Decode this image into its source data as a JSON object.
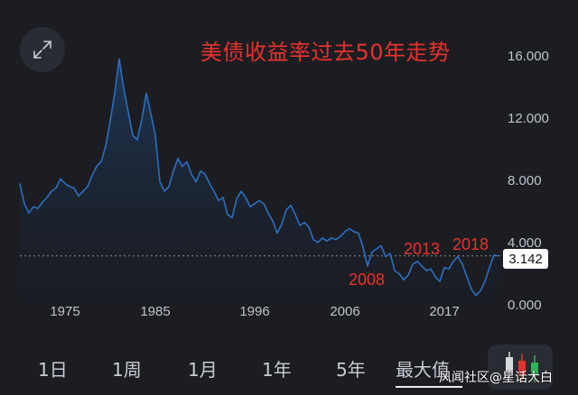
{
  "chart_data": {
    "type": "area",
    "title": "美债收益率过去50年走势",
    "x_tick_labels": [
      "1975",
      "1985",
      "1996",
      "2006",
      "2017"
    ],
    "y_tick_labels": [
      "16.000",
      "12.000",
      "8.000",
      "4.000",
      "0.000"
    ],
    "ylim": [
      0,
      16
    ],
    "grid": false,
    "current_value_label": "3.142",
    "current_value": 3.142,
    "annotations": [
      {
        "text": "2008",
        "year": 2008
      },
      {
        "text": "2013",
        "year": 2013
      },
      {
        "text": "2018",
        "year": 2018
      }
    ],
    "series": [
      {
        "x": [
          1970.0,
          1970.5,
          1971.0,
          1971.5,
          1972.0,
          1972.5,
          1973.0,
          1973.5,
          1974.0,
          1974.5,
          1975.0,
          1975.5,
          1976.0,
          1976.5,
          1977.0,
          1977.5,
          1978.0,
          1978.5,
          1979.0,
          1979.5,
          1980.0,
          1980.5,
          1981.0,
          1981.5,
          1982.0,
          1982.5,
          1983.0,
          1983.5,
          1984.0,
          1984.5,
          1985.0,
          1985.5,
          1986.0,
          1986.5,
          1987.0,
          1987.5,
          1988.0,
          1988.5,
          1989.0,
          1989.5,
          1990.0,
          1990.5,
          1991.0,
          1991.5,
          1992.0,
          1992.5,
          1993.0,
          1993.5,
          1994.0,
          1994.5,
          1995.0,
          1995.5,
          1996.0,
          1996.5,
          1997.0,
          1997.5,
          1998.0,
          1998.5,
          1999.0,
          1999.5,
          2000.0,
          2000.5,
          2001.0,
          2001.5,
          2002.0,
          2002.5,
          2003.0,
          2003.5,
          2004.0,
          2004.5,
          2005.0,
          2005.5,
          2006.0,
          2006.5,
          2007.0,
          2007.5,
          2008.0,
          2008.5,
          2009.0,
          2009.5,
          2010.0,
          2010.5,
          2011.0,
          2011.5,
          2012.0,
          2012.5,
          2013.0,
          2013.5,
          2014.0,
          2014.5,
          2015.0,
          2015.5,
          2016.0,
          2016.5,
          2017.0,
          2017.5,
          2018.0,
          2018.5,
          2019.0,
          2019.5,
          2020.0,
          2020.5,
          2021.0,
          2021.5,
          2022.0,
          2022.5,
          2023.0
        ],
        "values": [
          7.8,
          6.5,
          5.9,
          6.3,
          6.2,
          6.6,
          6.9,
          7.3,
          7.5,
          8.1,
          7.8,
          7.6,
          7.5,
          7.0,
          7.3,
          7.6,
          8.3,
          8.9,
          9.2,
          10.2,
          11.8,
          13.6,
          15.8,
          13.9,
          12.4,
          10.9,
          10.6,
          11.9,
          13.6,
          12.3,
          10.9,
          7.9,
          7.3,
          7.6,
          8.6,
          9.4,
          8.9,
          9.2,
          8.4,
          7.9,
          8.6,
          8.4,
          7.8,
          7.3,
          6.7,
          6.9,
          5.8,
          5.6,
          6.8,
          7.3,
          6.9,
          6.3,
          6.5,
          6.7,
          6.5,
          5.9,
          5.4,
          4.6,
          5.2,
          6.1,
          6.4,
          5.8,
          5.1,
          5.3,
          5.0,
          4.2,
          4.0,
          4.3,
          4.1,
          4.3,
          4.2,
          4.4,
          4.7,
          4.9,
          4.7,
          4.6,
          3.7,
          2.5,
          3.4,
          3.6,
          3.8,
          3.1,
          3.3,
          2.2,
          2.0,
          1.6,
          1.9,
          2.6,
          2.8,
          2.5,
          2.2,
          2.3,
          1.8,
          1.5,
          2.4,
          2.3,
          2.8,
          3.1,
          2.6,
          1.8,
          1.0,
          0.6,
          0.9,
          1.5,
          2.4,
          3.2,
          3.142
        ]
      }
    ]
  },
  "tabs": [
    "1日",
    "1周",
    "1月",
    "1年",
    "5年",
    "最大值"
  ],
  "active_tab": "最大值",
  "watermark": "风闻社区@星话大白",
  "colors": {
    "background": "#1c1d22",
    "line": "#2b6fbf",
    "title_red": "#e8322b",
    "axis_text": "#bfc3ca"
  }
}
